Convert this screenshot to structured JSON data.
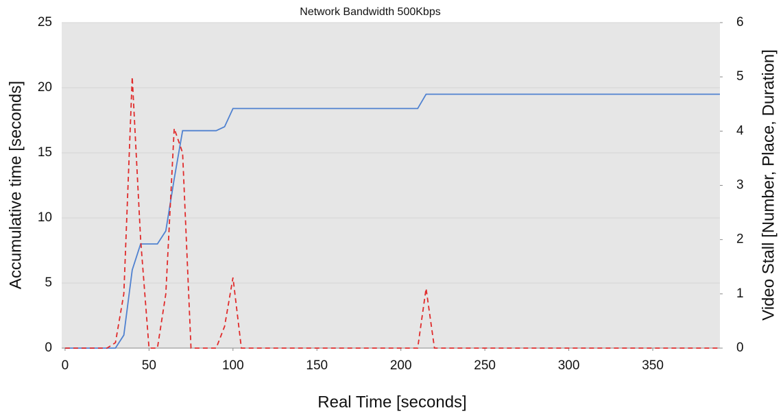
{
  "chart_data": {
    "type": "line",
    "title": "Network Bandwidth 500Kbps",
    "x_label": "Real Time [seconds]",
    "y_label": "Accumulative time [seconds]",
    "y2_label": "Video Stall [Number, Place, Duration]",
    "x": [
      0,
      5,
      10,
      15,
      20,
      25,
      30,
      35,
      40,
      45,
      50,
      55,
      60,
      65,
      70,
      75,
      80,
      85,
      90,
      95,
      100,
      105,
      110,
      115,
      120,
      125,
      130,
      135,
      140,
      145,
      150,
      155,
      160,
      165,
      170,
      175,
      180,
      185,
      190,
      195,
      200,
      205,
      210,
      215,
      220,
      225,
      230,
      235,
      240,
      245,
      250,
      255,
      260,
      265,
      270,
      275,
      280,
      285,
      290,
      295,
      300,
      305,
      310,
      315,
      320,
      325,
      330,
      335,
      340,
      345,
      350,
      355,
      360,
      365,
      370,
      375,
      380,
      385,
      390
    ],
    "series": [
      {
        "color": "#4f81d0",
        "dashed": false,
        "axis": "y",
        "values": [
          0,
          0,
          0,
          0,
          0,
          0,
          0,
          1,
          6,
          8,
          8,
          8,
          9,
          13,
          16.7,
          16.7,
          16.7,
          16.7,
          16.7,
          17,
          18.4,
          18.4,
          18.4,
          18.4,
          18.4,
          18.4,
          18.4,
          18.4,
          18.4,
          18.4,
          18.4,
          18.4,
          18.4,
          18.4,
          18.4,
          18.4,
          18.4,
          18.4,
          18.4,
          18.4,
          18.4,
          18.4,
          18.4,
          19.5,
          19.5,
          19.5,
          19.5,
          19.5,
          19.5,
          19.5,
          19.5,
          19.5,
          19.5,
          19.5,
          19.5,
          19.5,
          19.5,
          19.5,
          19.5,
          19.5,
          19.5,
          19.5,
          19.5,
          19.5,
          19.5,
          19.5,
          19.5,
          19.5,
          19.5,
          19.5,
          19.5,
          19.5,
          19.5,
          19.5,
          19.5,
          19.5,
          19.5,
          19.5,
          19.5
        ]
      },
      {
        "color": "#e02a2a",
        "dashed": true,
        "axis": "y2",
        "values": [
          0,
          0,
          0,
          0,
          0,
          0,
          0.1,
          1,
          5,
          2,
          0,
          0,
          1,
          4.05,
          3.6,
          0,
          0,
          0,
          0,
          0.4,
          1.3,
          0,
          0,
          0,
          0,
          0,
          0,
          0,
          0,
          0,
          0,
          0,
          0,
          0,
          0,
          0,
          0,
          0,
          0,
          0,
          0,
          0,
          0,
          1.1,
          0,
          0,
          0,
          0,
          0,
          0,
          0,
          0,
          0,
          0,
          0,
          0,
          0,
          0,
          0,
          0,
          0,
          0,
          0,
          0,
          0,
          0,
          0,
          0,
          0,
          0,
          0,
          0,
          0,
          0,
          0,
          0,
          0,
          0,
          0
        ]
      }
    ],
    "xlim": [
      -2,
      390
    ],
    "xticks": [
      0,
      50,
      100,
      150,
      200,
      250,
      300,
      350
    ],
    "ylim": [
      0,
      25
    ],
    "yticks": [
      0,
      5,
      10,
      15,
      20,
      25
    ],
    "y2lim": [
      0,
      6
    ],
    "y2ticks": [
      0,
      1,
      2,
      3,
      4,
      5,
      6
    ],
    "grid": true
  }
}
